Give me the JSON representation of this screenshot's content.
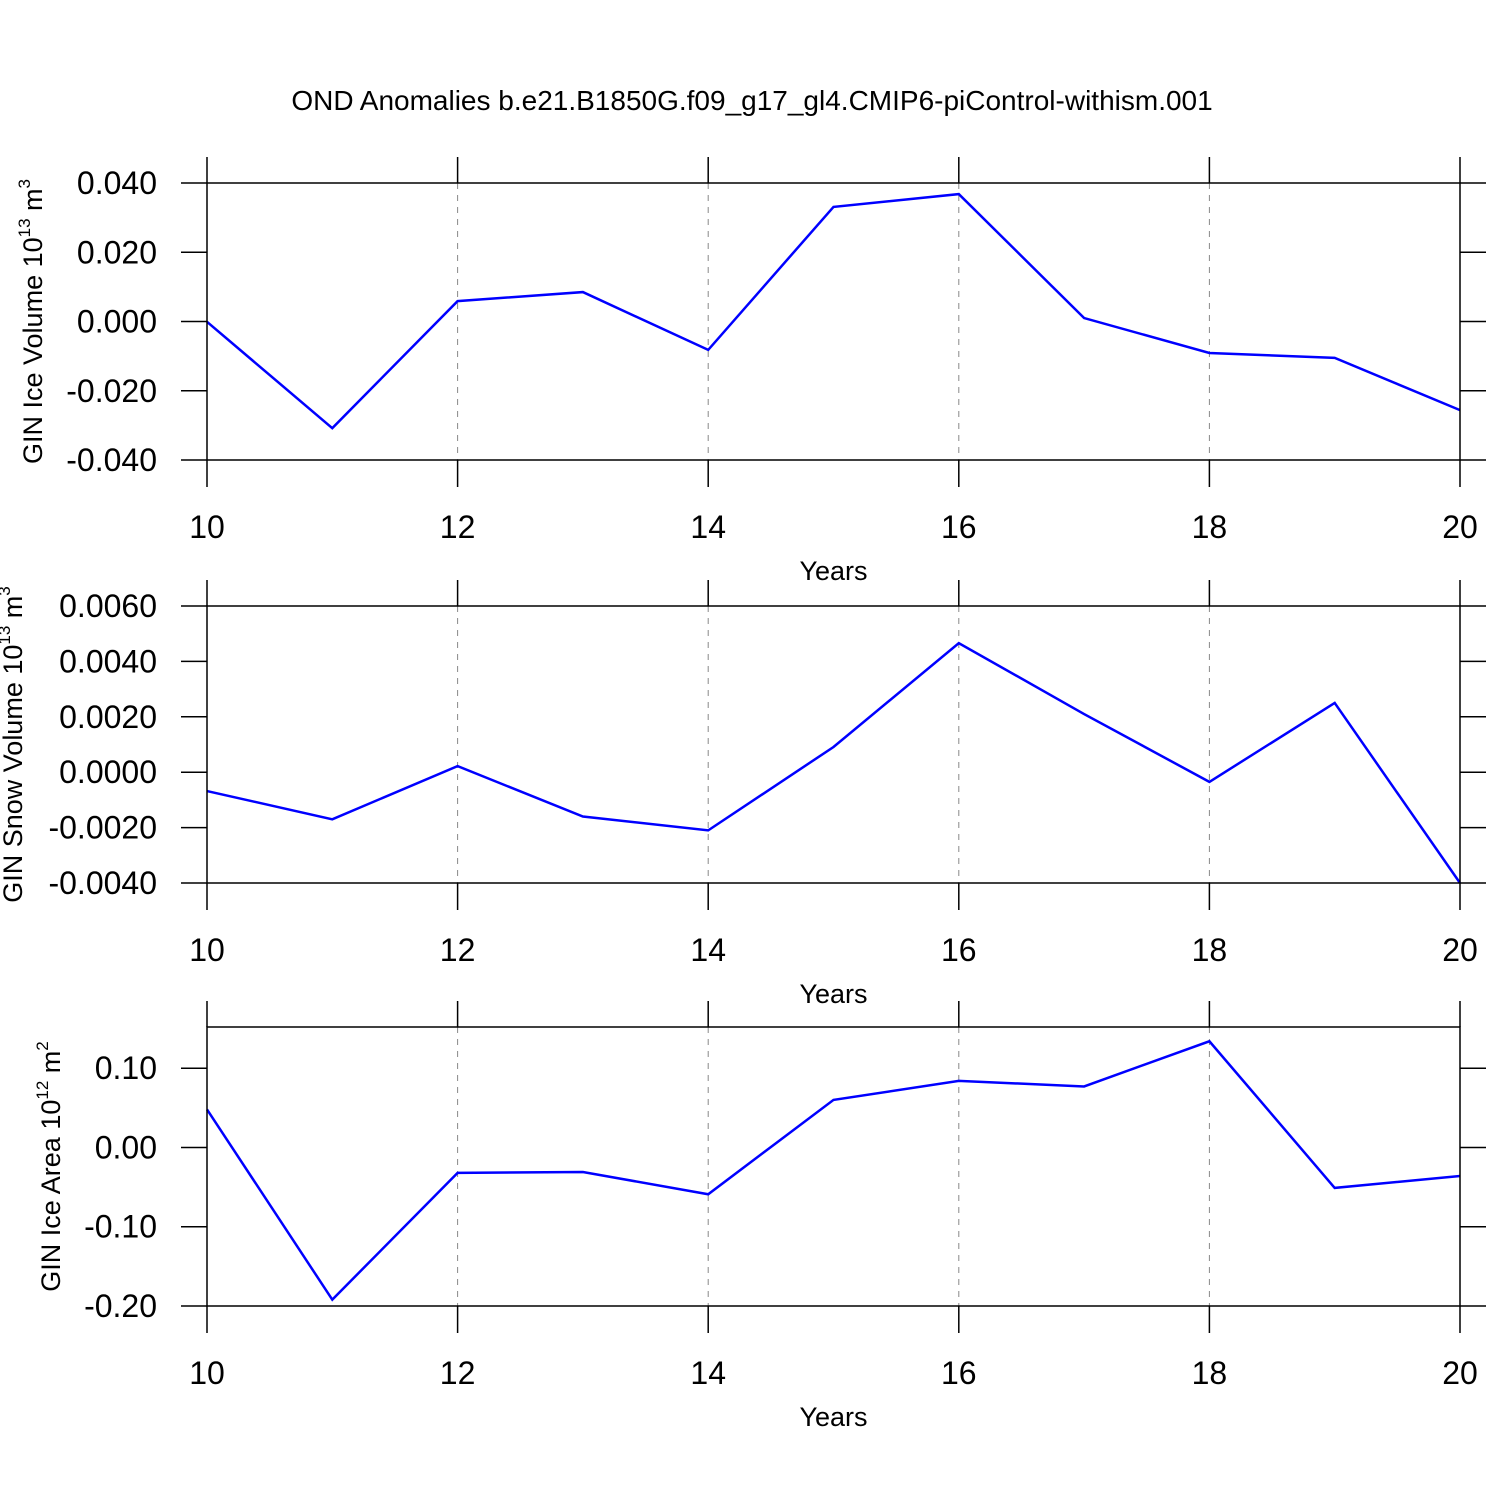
{
  "title": "OND Anomalies b.e21.B1850G.f09_g17_gl4.CMIP6-piControl-withism.001",
  "chart_data": [
    {
      "type": "line",
      "xlabel": "Years",
      "ylabel": [
        "GIN Ice Volume 10",
        "13",
        " m",
        "3"
      ],
      "x": [
        10,
        11,
        12,
        13,
        14,
        15,
        16,
        17,
        18,
        19,
        20
      ],
      "series": [
        {
          "color": "#0000ff",
          "values": [
            -0.0001,
            -0.0308,
            0.0059,
            0.0085,
            -0.0082,
            0.0331,
            0.0368,
            0.001,
            -0.0091,
            -0.0105,
            -0.0256
          ]
        }
      ],
      "xlim": [
        10,
        20
      ],
      "xticks": [
        10,
        12,
        14,
        16,
        18,
        20
      ],
      "ylim": [
        -0.04,
        0.04
      ],
      "yticks": [
        {
          "value": -0.04,
          "label": "-0.040"
        },
        {
          "value": -0.02,
          "label": "-0.020"
        },
        {
          "value": 0,
          "label": "0.000"
        },
        {
          "value": 0.02,
          "label": "0.020"
        },
        {
          "value": 0.04,
          "label": "0.040"
        }
      ],
      "grid": true
    },
    {
      "type": "line",
      "xlabel": "Years",
      "ylabel": [
        "GIN Snow Volume 10",
        "13",
        " m",
        "3"
      ],
      "x": [
        10,
        11,
        12,
        13,
        14,
        15,
        16,
        17,
        18,
        19,
        20
      ],
      "series": [
        {
          "color": "#0000ff",
          "values": [
            -0.00068,
            -0.0017,
            0.00022,
            -0.0016,
            -0.0021,
            0.00091,
            0.00466,
            0.0021,
            -0.00035,
            0.0025,
            -0.004
          ]
        }
      ],
      "xlim": [
        10,
        20
      ],
      "xticks": [
        10,
        12,
        14,
        16,
        18,
        20
      ],
      "ylim": [
        -0.004,
        0.006
      ],
      "yticks": [
        {
          "value": -0.004,
          "label": "-0.0040"
        },
        {
          "value": -0.002,
          "label": "-0.0020"
        },
        {
          "value": 0,
          "label": "0.0000"
        },
        {
          "value": 0.002,
          "label": "0.0020"
        },
        {
          "value": 0.004,
          "label": "0.0040"
        },
        {
          "value": 0.006,
          "label": "0.0060"
        }
      ],
      "grid": true
    },
    {
      "type": "line",
      "xlabel": "Years",
      "ylabel": [
        "GIN Ice Area 10",
        "12",
        " m",
        "2"
      ],
      "x": [
        10,
        11,
        12,
        13,
        14,
        15,
        16,
        17,
        18,
        19,
        20
      ],
      "series": [
        {
          "color": "#0000ff",
          "values": [
            0.048,
            -0.192,
            -0.032,
            -0.031,
            -0.059,
            0.06,
            0.084,
            0.077,
            0.134,
            -0.051,
            -0.036
          ]
        }
      ],
      "xlim": [
        10,
        20
      ],
      "xticks": [
        10,
        12,
        14,
        16,
        18,
        20
      ],
      "ylim": [
        -0.2,
        0.152
      ],
      "yticks": [
        {
          "value": -0.2,
          "label": "-0.20"
        },
        {
          "value": -0.1,
          "label": "-0.10"
        },
        {
          "value": 0,
          "label": "0.00"
        },
        {
          "value": 0.1,
          "label": "0.10"
        }
      ],
      "grid": true
    }
  ]
}
